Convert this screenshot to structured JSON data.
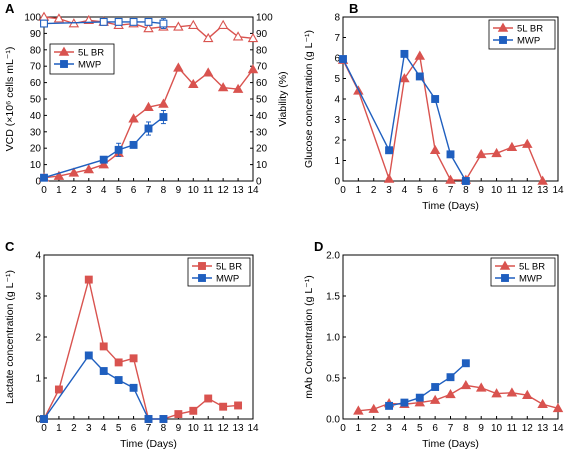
{
  "colors": {
    "br": "#d9534f",
    "mwp": "#1f5fbf",
    "axis": "#000000"
  },
  "chart_data": [
    {
      "id": "A",
      "type": "line",
      "panel_label": "A",
      "xlabel": "",
      "ylabel": "VCD (×10⁶ cells mL⁻¹)",
      "y2label": "Viability (%)",
      "xlim": [
        0,
        14
      ],
      "ylim": [
        0,
        100
      ],
      "y2lim": [
        0,
        100
      ],
      "xticks": [
        0,
        1,
        2,
        3,
        4,
        5,
        6,
        7,
        8,
        9,
        10,
        11,
        12,
        13,
        14
      ],
      "yticks": [
        0,
        10,
        20,
        30,
        40,
        50,
        60,
        70,
        80,
        90,
        100
      ],
      "y2ticks": [
        0,
        10,
        20,
        30,
        40,
        50,
        60,
        70,
        80,
        90,
        100
      ],
      "legend": {
        "position": "upper-left",
        "entries": [
          "5L BR",
          "MWP"
        ]
      },
      "series": [
        {
          "name": "5L BR",
          "color": "br",
          "marker": "triangle",
          "axis": "y",
          "filled": true,
          "x": [
            0,
            1,
            2,
            3,
            4,
            5,
            6,
            7,
            8,
            9,
            10,
            11,
            12,
            13,
            14
          ],
          "y": [
            2,
            3,
            5,
            7,
            10,
            17,
            38,
            45,
            47,
            69,
            59,
            66,
            57,
            56,
            68
          ]
        },
        {
          "name": "MWP",
          "color": "mwp",
          "marker": "square",
          "axis": "y",
          "filled": true,
          "x": [
            0,
            4,
            5,
            6,
            7,
            8
          ],
          "y": [
            2,
            13,
            19,
            22,
            32,
            39
          ],
          "err": [
            0,
            1,
            4,
            1,
            4,
            4
          ]
        },
        {
          "name": "5L BR viability",
          "color": "br",
          "marker": "triangle",
          "axis": "y2",
          "filled": false,
          "x": [
            0,
            1,
            2,
            3,
            4,
            5,
            6,
            7,
            8,
            9,
            10,
            11,
            12,
            13,
            14
          ],
          "y": [
            100,
            99,
            96,
            98,
            97,
            95,
            96,
            93,
            94,
            94,
            95,
            87,
            95,
            88,
            87
          ]
        },
        {
          "name": "MWP viability",
          "color": "mwp",
          "marker": "square",
          "axis": "y2",
          "filled": false,
          "x": [
            0,
            4,
            5,
            6,
            7,
            8
          ],
          "y": [
            96,
            97,
            97,
            97,
            97,
            96
          ],
          "err": [
            0,
            1,
            1,
            1,
            1,
            3
          ]
        }
      ]
    },
    {
      "id": "B",
      "type": "line",
      "panel_label": "B",
      "xlabel": "Time (Days)",
      "ylabel": "Glucose concentration (g L⁻¹)",
      "xlim": [
        0,
        14
      ],
      "ylim": [
        0,
        8
      ],
      "xticks": [
        0,
        1,
        2,
        3,
        4,
        5,
        6,
        7,
        8,
        9,
        10,
        11,
        12,
        13,
        14
      ],
      "yticks": [
        0,
        1,
        2,
        3,
        4,
        5,
        6,
        7,
        8
      ],
      "legend": {
        "position": "top-right",
        "entries": [
          "5L BR",
          "MWP"
        ]
      },
      "series": [
        {
          "name": "5L BR",
          "color": "br",
          "marker": "triangle",
          "filled": true,
          "x": [
            0,
            1,
            3,
            4,
            5,
            6,
            7,
            8,
            9,
            10,
            11,
            12,
            13
          ],
          "y": [
            5.9,
            4.4,
            0.1,
            5.0,
            6.1,
            1.5,
            0.05,
            0.05,
            1.3,
            1.35,
            1.65,
            1.8,
            0
          ]
        },
        {
          "name": "MWP",
          "color": "mwp",
          "marker": "square",
          "filled": true,
          "x": [
            0,
            3,
            4,
            5,
            6,
            7,
            8
          ],
          "y": [
            5.95,
            1.5,
            6.2,
            5.1,
            4.0,
            1.3,
            0
          ]
        }
      ]
    },
    {
      "id": "C",
      "type": "line",
      "panel_label": "C",
      "xlabel": "Time (Days)",
      "ylabel": "Lactate concentration (g L⁻¹)",
      "xlim": [
        0,
        14
      ],
      "ylim": [
        0,
        4
      ],
      "xticks": [
        0,
        1,
        2,
        3,
        4,
        5,
        6,
        7,
        8,
        9,
        10,
        11,
        12,
        13,
        14
      ],
      "yticks": [
        0,
        1,
        2,
        3,
        4
      ],
      "legend": {
        "position": "top-right",
        "entries": [
          "5L BR",
          "MWP"
        ]
      },
      "series": [
        {
          "name": "5L BR",
          "color": "br",
          "marker": "square",
          "filled": true,
          "x": [
            0,
            1,
            3,
            4,
            5,
            6,
            7,
            8,
            9,
            10,
            11,
            12,
            13
          ],
          "y": [
            0,
            0.72,
            3.4,
            1.77,
            1.38,
            1.48,
            0,
            0,
            0.12,
            0.2,
            0.5,
            0.3,
            0.33
          ]
        },
        {
          "name": "MWP",
          "color": "mwp",
          "marker": "square",
          "filled": true,
          "x": [
            0,
            3,
            4,
            5,
            6,
            7,
            8
          ],
          "y": [
            0,
            1.55,
            1.17,
            0.95,
            0.76,
            0,
            0
          ]
        }
      ]
    },
    {
      "id": "D",
      "type": "line",
      "panel_label": "D",
      "xlabel": "Time (Days)",
      "ylabel": "mAb Concentration (g L⁻¹)",
      "xlim": [
        0,
        14
      ],
      "ylim": [
        0,
        2.0
      ],
      "xticks": [
        0,
        1,
        2,
        3,
        4,
        5,
        6,
        7,
        8,
        9,
        10,
        11,
        12,
        13,
        14
      ],
      "yticks": [
        0,
        0.5,
        1.0,
        1.5,
        2.0
      ],
      "legend": {
        "position": "top-right",
        "entries": [
          "5L BR",
          "MWP"
        ]
      },
      "series": [
        {
          "name": "5L BR",
          "color": "br",
          "marker": "triangle",
          "filled": true,
          "x": [
            1,
            2,
            3,
            4,
            5,
            6,
            7,
            8,
            9,
            10,
            11,
            12,
            13,
            14
          ],
          "y": [
            0.1,
            0.12,
            0.19,
            0.18,
            0.2,
            0.23,
            0.3,
            0.41,
            0.38,
            0.31,
            0.32,
            0.29,
            0.18,
            0.13
          ]
        },
        {
          "name": "MWP",
          "color": "mwp",
          "marker": "square",
          "filled": true,
          "x": [
            3,
            4,
            5,
            6,
            7,
            8
          ],
          "y": [
            0.16,
            0.2,
            0.26,
            0.39,
            0.51,
            0.68
          ]
        }
      ]
    }
  ]
}
